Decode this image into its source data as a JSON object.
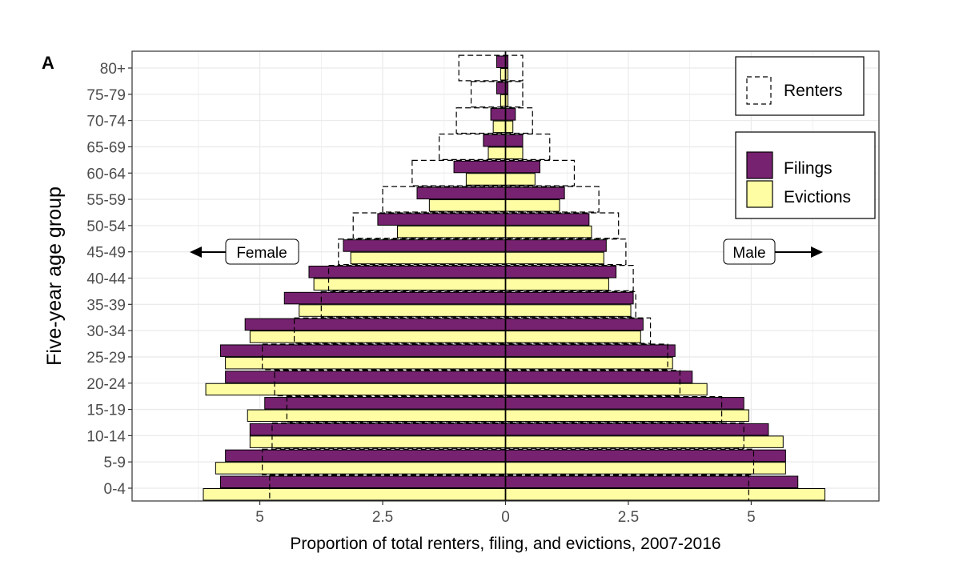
{
  "panel_tag": "A",
  "chart_data": {
    "type": "bar",
    "orientation": "horizontal-population-pyramid",
    "xlabel": "Proportion of total renters, filing, and evictions, 2007-2016",
    "ylabel": "Five-year age group",
    "categories": [
      "0-4",
      "5-9",
      "10-14",
      "15-19",
      "20-24",
      "25-29",
      "30-34",
      "35-39",
      "40-44",
      "45-49",
      "50-54",
      "55-59",
      "60-64",
      "65-69",
      "70-74",
      "75-79",
      "80+"
    ],
    "x_ticks": [
      {
        "value": -5,
        "label": "5"
      },
      {
        "value": -2.5,
        "label": "2.5"
      },
      {
        "value": 0,
        "label": "0"
      },
      {
        "value": 2.5,
        "label": "2.5"
      },
      {
        "value": 5,
        "label": "5"
      }
    ],
    "xlim": [
      -7.6,
      7.6
    ],
    "grid": true,
    "side_labels": {
      "left": "Female",
      "right": "Male"
    },
    "colors": {
      "filings": "#772270",
      "evictions": "#FFFDA3",
      "renters_outline": "#000000",
      "grid": "#EBEBEB",
      "zero_line": "#000000"
    },
    "series": [
      {
        "name": "Filings",
        "female": [
          5.8,
          5.7,
          5.2,
          4.9,
          5.7,
          5.8,
          5.3,
          4.5,
          4.0,
          3.3,
          2.6,
          1.8,
          1.05,
          0.45,
          0.3,
          0.18,
          0.18
        ],
        "male": [
          5.95,
          5.7,
          5.35,
          4.85,
          3.8,
          3.45,
          2.8,
          2.6,
          2.25,
          2.05,
          1.7,
          1.2,
          0.7,
          0.35,
          0.2,
          0.05,
          0.05
        ]
      },
      {
        "name": "Evictions",
        "female": [
          6.15,
          5.9,
          5.2,
          5.25,
          6.1,
          5.7,
          5.2,
          4.2,
          3.9,
          3.15,
          2.2,
          1.55,
          0.8,
          0.35,
          0.25,
          0.1,
          0.1
        ],
        "male": [
          6.5,
          5.7,
          5.65,
          4.95,
          4.1,
          3.4,
          2.75,
          2.55,
          2.1,
          2.0,
          1.75,
          1.1,
          0.6,
          0.35,
          0.15,
          0.05,
          0.05
        ]
      },
      {
        "name": "Renters",
        "female": [
          4.8,
          4.95,
          4.75,
          4.45,
          4.7,
          4.95,
          4.3,
          3.75,
          3.6,
          3.4,
          3.1,
          2.5,
          1.9,
          1.35,
          1.0,
          0.7,
          0.95
        ],
        "male": [
          4.95,
          5.05,
          4.85,
          4.4,
          3.55,
          3.3,
          2.95,
          2.65,
          2.6,
          2.45,
          2.3,
          1.9,
          1.4,
          0.9,
          0.55,
          0.35,
          0.35
        ]
      }
    ],
    "legend": {
      "placement": "top-right",
      "renters_label": "Renters",
      "filings_label": "Filings",
      "evictions_label": "Evictions"
    }
  }
}
